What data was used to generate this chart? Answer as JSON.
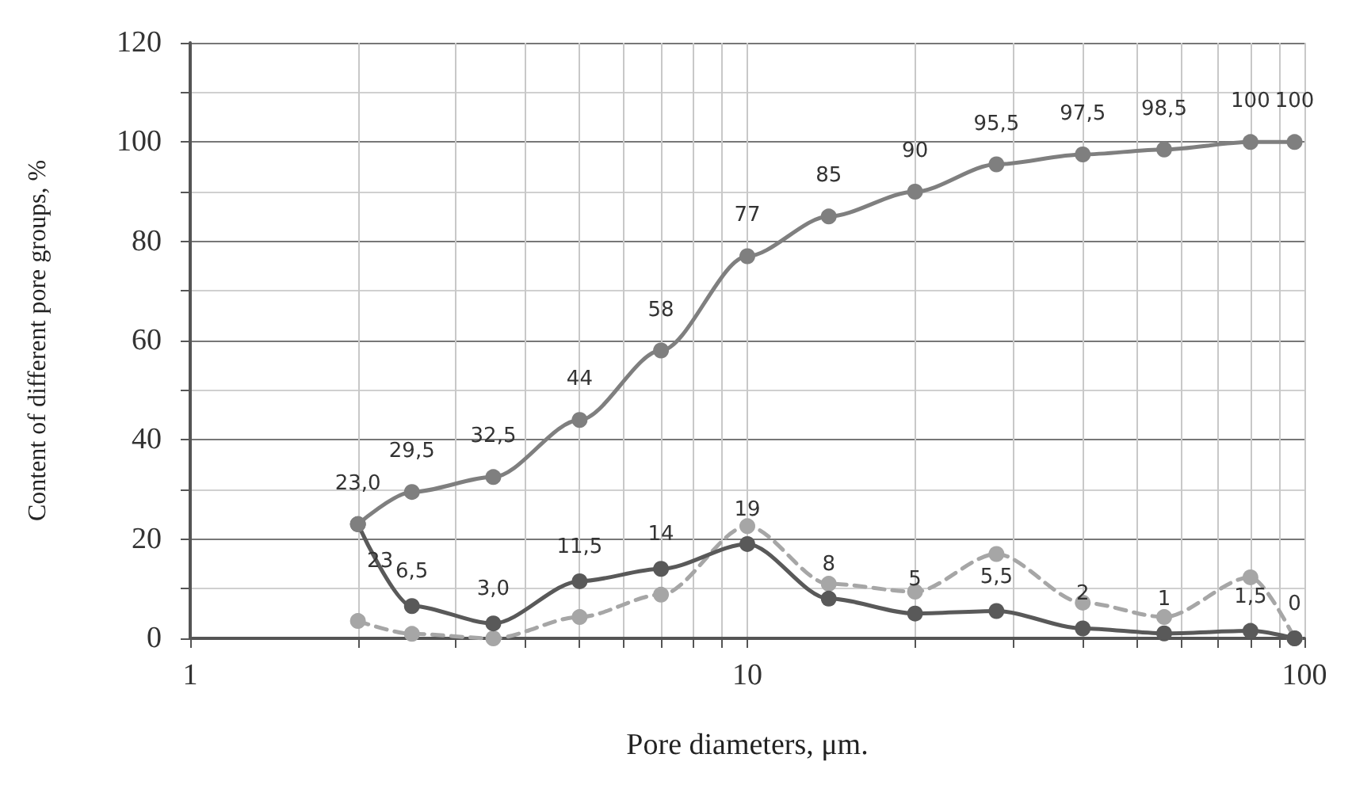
{
  "chart_data": {
    "type": "line",
    "xlabel": "Pore diameters, μm.",
    "ylabel": "Content of different pore groups, %",
    "x": [
      2,
      2.5,
      3.5,
      5,
      7,
      10,
      14,
      20,
      28,
      40,
      56,
      80,
      96
    ],
    "log": "x",
    "xlim": [
      1,
      100
    ],
    "xticks": [
      1,
      {
        "value": 2,
        "label": null
      },
      {
        "value": 3,
        "label": null
      },
      {
        "value": 4,
        "label": null
      },
      {
        "value": 5,
        "label": null
      },
      {
        "value": 6,
        "label": null
      },
      {
        "value": 7,
        "label": null
      },
      {
        "value": 8,
        "label": null
      },
      {
        "value": 9,
        "label": null
      },
      10,
      {
        "value": 20,
        "label": null
      },
      {
        "value": 30,
        "label": null
      },
      {
        "value": 40,
        "label": null
      },
      {
        "value": 50,
        "label": null
      },
      {
        "value": 60,
        "label": null
      },
      {
        "value": 70,
        "label": null
      },
      {
        "value": 80,
        "label": null
      },
      {
        "value": 90,
        "label": null
      },
      100
    ],
    "ylim": [
      0,
      120
    ],
    "yticks": [
      0,
      20,
      40,
      60,
      80,
      100,
      120
    ],
    "grid": true,
    "marker": "circle",
    "series": [
      {
        "color": "#7f7f7f",
        "line_style": "solid",
        "values": [
          23,
          29.5,
          32.5,
          44,
          58,
          77,
          85,
          90,
          95.5,
          97.5,
          98.5,
          100,
          100
        ],
        "value_labels": [
          "23,0",
          "29,5",
          "32,5",
          "44",
          "58",
          "77",
          "85",
          "90",
          "95,5",
          "97,5",
          "98,5",
          "100",
          "100"
        ]
      },
      {
        "color": "#595959",
        "line_style": "solid",
        "values": [
          23,
          6.5,
          3,
          11.5,
          14,
          19,
          8,
          5,
          5.5,
          2,
          1,
          1.5,
          0
        ],
        "value_labels": [
          "23",
          "6,5",
          "3,0",
          "11,5",
          "14",
          "19",
          "8",
          "5",
          "5,5",
          "2",
          "1",
          "1,5",
          "0"
        ]
      },
      {
        "color": "#a6a6a6",
        "line_style": "dashed",
        "values": [
          3.5,
          0.9,
          0,
          4.3,
          8.8,
          22.6,
          11,
          9.4,
          17,
          7.2,
          4.3,
          12.3,
          0
        ]
      }
    ]
  }
}
